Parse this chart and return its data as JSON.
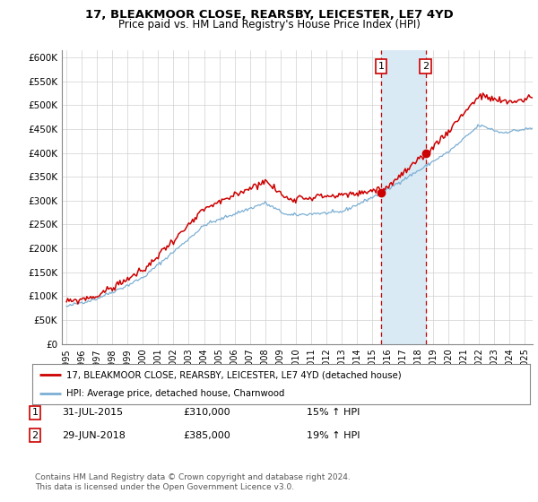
{
  "title1": "17, BLEAKMOOR CLOSE, REARSBY, LEICESTER, LE7 4YD",
  "title2": "Price paid vs. HM Land Registry's House Price Index (HPI)",
  "ylabel_ticks": [
    "£0",
    "£50K",
    "£100K",
    "£150K",
    "£200K",
    "£250K",
    "£300K",
    "£350K",
    "£400K",
    "£450K",
    "£500K",
    "£550K",
    "£600K"
  ],
  "ytick_values": [
    0,
    50000,
    100000,
    150000,
    200000,
    250000,
    300000,
    350000,
    400000,
    450000,
    500000,
    550000,
    600000
  ],
  "xlim_start": 1994.7,
  "xlim_end": 2025.5,
  "ylim_min": 0,
  "ylim_max": 615000,
  "legend_line1": "17, BLEAKMOOR CLOSE, REARSBY, LEICESTER, LE7 4YD (detached house)",
  "legend_line2": "HPI: Average price, detached house, Charnwood",
  "sale1_date": 2015.58,
  "sale1_price": 310000,
  "sale2_date": 2018.49,
  "sale2_price": 385000,
  "sale1_label_text": "31-JUL-2015",
  "sale1_amount_text": "£310,000",
  "sale1_hpi_text": "15% ↑ HPI",
  "sale2_label_text": "29-JUN-2018",
  "sale2_amount_text": "£385,000",
  "sale2_hpi_text": "19% ↑ HPI",
  "footer": "Contains HM Land Registry data © Crown copyright and database right 2024.\nThis data is licensed under the Open Government Licence v3.0.",
  "hpi_color": "#7bafd4",
  "price_color": "#cc0000",
  "shade_color": "#daeaf5",
  "vline_color": "#cc0000",
  "bg_color": "#ffffff",
  "grid_color": "#d0d0d0"
}
